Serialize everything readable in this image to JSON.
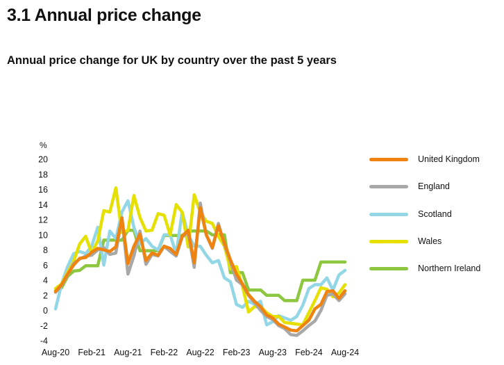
{
  "page": {
    "section_title": "3.1 Annual price change",
    "chart_title": "Annual price change for UK by country over the past 5 years"
  },
  "chart_data": {
    "type": "line",
    "title": "Annual price change for UK by country over the past 5 years",
    "ylabel": "%",
    "xlabel": "",
    "ylim": [
      -4,
      20
    ],
    "yticks": [
      -4,
      -2,
      0,
      2,
      4,
      6,
      8,
      10,
      12,
      14,
      16,
      18,
      20
    ],
    "xtick_labels": [
      "Aug-20",
      "Feb-21",
      "Aug-21",
      "Feb-22",
      "Aug-22",
      "Feb-23",
      "Aug-23",
      "Feb-24",
      "Aug-24"
    ],
    "x_start": "Aug-20",
    "x_end": "Aug-24",
    "grid": false,
    "legend_position": "right",
    "series": [
      {
        "name": "Northern Ireland",
        "color": "#8dc63f",
        "values": [
          2.6,
          3.0,
          4.5,
          5.2,
          5.3,
          5.9,
          5.9,
          5.9,
          9.3,
          9.3,
          9.3,
          9.3,
          10.6,
          10.6,
          7.9,
          7.9,
          7.9,
          7.9,
          9.9,
          9.9,
          9.9,
          9.9,
          10.5,
          10.5,
          10.5,
          10.5,
          10.0,
          10.0,
          10.0,
          5.0,
          5.0,
          5.0,
          2.7,
          2.7,
          2.7,
          2.0,
          2.0,
          2.0,
          1.3,
          1.3,
          1.3,
          4.0,
          4.0,
          4.0,
          6.4,
          6.4,
          6.4,
          6.4,
          6.4
        ]
      },
      {
        "name": "Scotland",
        "color": "#93d6e6",
        "values": [
          0.2,
          3.5,
          5.8,
          7.5,
          7.8,
          7.5,
          8.5,
          11.0,
          6.0,
          10.5,
          9.5,
          13.0,
          14.5,
          11.0,
          8.8,
          9.5,
          8.5,
          8.0,
          10.0,
          10.0,
          7.5,
          13.0,
          10.0,
          8.5,
          8.5,
          7.3,
          6.3,
          6.6,
          4.3,
          3.8,
          0.8,
          0.4,
          1.2,
          0.8,
          1.2,
          -1.9,
          -1.5,
          -0.7,
          -1.0,
          -1.3,
          -0.8,
          0.7,
          2.9,
          3.4,
          3.4,
          4.3,
          2.7,
          4.7,
          5.3
        ]
      },
      {
        "name": "Wales",
        "color": "#e6e000",
        "values": [
          2.9,
          3.5,
          5.0,
          6.5,
          8.8,
          9.8,
          7.6,
          9.2,
          13.2,
          13.0,
          16.2,
          10.3,
          10.6,
          15.2,
          12.3,
          10.5,
          10.6,
          12.8,
          12.6,
          10.0,
          14.0,
          13.0,
          8.4,
          15.3,
          13.0,
          11.8,
          11.5,
          9.8,
          8.5,
          5.5,
          5.8,
          3.2,
          -0.2,
          0.5,
          0.5,
          -0.3,
          -0.8,
          -0.8,
          -1.6,
          -1.7,
          -1.8,
          -1.9,
          -0.3,
          1.3,
          3.0,
          2.8,
          1.8,
          2.3,
          3.4
        ]
      },
      {
        "name": "England",
        "color": "#a8a8a8",
        "values": [
          2.4,
          3.3,
          4.7,
          6.2,
          6.8,
          7.2,
          7.3,
          8.0,
          8.3,
          7.4,
          7.6,
          12.3,
          4.8,
          7.2,
          10.5,
          6.1,
          7.4,
          7.2,
          8.5,
          7.8,
          7.2,
          9.7,
          10.3,
          5.7,
          14.2,
          10.0,
          8.2,
          11.5,
          8.7,
          6.5,
          4.0,
          3.4,
          2.0,
          1.0,
          0.0,
          -0.8,
          -1.2,
          -2.0,
          -2.4,
          -3.2,
          -3.3,
          -2.7,
          -2.0,
          -1.4,
          0.0,
          2.0,
          2.2,
          1.3,
          2.2
        ]
      },
      {
        "name": "United Kingdom",
        "color": "#ee8311",
        "values": [
          2.5,
          3.4,
          4.8,
          6.0,
          6.9,
          7.0,
          7.7,
          8.2,
          8.0,
          7.8,
          8.4,
          12.2,
          6.2,
          8.5,
          10.1,
          6.6,
          7.6,
          7.3,
          8.5,
          8.2,
          7.4,
          9.8,
          10.6,
          6.3,
          13.6,
          10.0,
          8.3,
          11.2,
          8.9,
          6.7,
          4.8,
          3.5,
          2.1,
          1.2,
          0.5,
          -0.6,
          -1.0,
          -1.8,
          -2.2,
          -2.6,
          -2.7,
          -2.0,
          -1.3,
          0.2,
          0.8,
          2.5,
          2.6,
          1.6,
          2.6
        ]
      }
    ]
  },
  "legend": {
    "items": [
      {
        "label": "United Kingdom",
        "color": "#ee8311"
      },
      {
        "label": "England",
        "color": "#a8a8a8"
      },
      {
        "label": "Scotland",
        "color": "#93d6e6"
      },
      {
        "label": "Wales",
        "color": "#e6e000"
      },
      {
        "label": "Northern Ireland",
        "color": "#8dc63f"
      }
    ]
  }
}
